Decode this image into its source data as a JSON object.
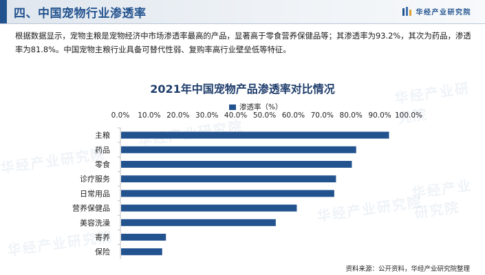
{
  "header": {
    "title": "四、中国宠物行业渗透率",
    "brand": "华经产业研究院"
  },
  "intro": "根据数据显示，宠物主粮是宠物经济中市场渗透率最高的产品，显著高于零食营养保健品等；其渗透率为93.2%，其次为药品，渗透率为81.8%。中国宠物主粮行业具备可替代性弱、复购率高行业壁垒低等特征。",
  "watermark": "华经产业研究院",
  "source": "资料来源：公开资料，华经产业研究院整理",
  "colors": {
    "bar": "#23538f",
    "title": "#1f3d6b",
    "accent": "#23538f"
  },
  "chart_data": {
    "type": "bar",
    "orientation": "horizontal",
    "title": "2021年中国宠物产品渗透率对比情况",
    "legend_position": "top",
    "xaxis_position": "top",
    "grid": false,
    "xlim": [
      0,
      100
    ],
    "ticks": [
      "0.0%",
      "10.0%",
      "20.0%",
      "30.0%",
      "40.0%",
      "50.0%",
      "60.0%",
      "70.0%",
      "80.0%",
      "90.0%",
      "100.0%"
    ],
    "categories": [
      "主粮",
      "药品",
      "零食",
      "诊疗服务",
      "日常用品",
      "营养保健品",
      "美容洗澡",
      "寄养",
      "保险"
    ],
    "series": [
      {
        "name": "渗透率（%）",
        "values": [
          93.2,
          81.8,
          80.3,
          74.8,
          74.2,
          61.2,
          53.9,
          15.8,
          14.5
        ]
      }
    ]
  }
}
